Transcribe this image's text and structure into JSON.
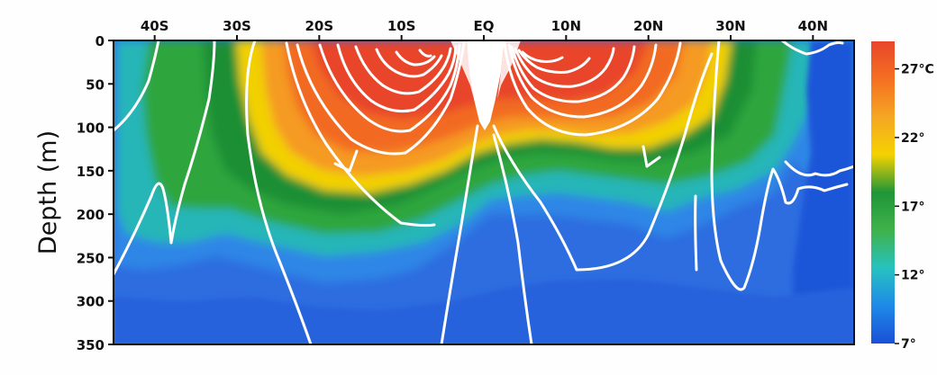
{
  "chart_data": {
    "type": "heatmap",
    "title": "",
    "xlabel": "",
    "ylabel": "Depth (m)",
    "x_ticks": [
      "40S",
      "30S",
      "20S",
      "10S",
      "EQ",
      "10N",
      "20N",
      "30N",
      "40N"
    ],
    "x_tick_values": [
      -40,
      -30,
      -20,
      -10,
      0,
      10,
      20,
      30,
      40
    ],
    "xlim": [
      -45,
      45
    ],
    "y_ticks": [
      "0",
      "50",
      "100",
      "150",
      "200",
      "250",
      "300",
      "350"
    ],
    "y_tick_values": [
      0,
      50,
      100,
      150,
      200,
      250,
      300,
      350
    ],
    "ylim": [
      0,
      350
    ],
    "y_inverted": true,
    "variable": "temperature",
    "colorbar": {
      "ticks": [
        "27°C",
        "22°",
        "17°",
        "12°",
        "7°"
      ],
      "tick_values": [
        27,
        22,
        17,
        12,
        7
      ],
      "range": [
        7,
        29
      ],
      "colors": [
        "#1a4fd6",
        "#1e8ae8",
        "#27c2c0",
        "#3fb24a",
        "#1f9638",
        "#f5d200",
        "#f5a623",
        "#f56f22",
        "#e8452a"
      ]
    },
    "isotherm_depth_m": [
      [
        -45,
        185
      ],
      [
        -40,
        225
      ],
      [
        -35,
        242
      ],
      [
        -30,
        236
      ],
      [
        -25,
        224
      ],
      [
        -20,
        210
      ],
      [
        -15,
        192
      ],
      [
        -10,
        170
      ],
      [
        -5,
        148
      ],
      [
        0,
        140
      ],
      [
        5,
        145
      ],
      [
        10,
        160
      ],
      [
        15,
        168
      ],
      [
        20,
        166
      ],
      [
        25,
        150
      ],
      [
        30,
        130
      ],
      [
        35,
        100
      ],
      [
        40,
        40
      ],
      [
        45,
        20
      ]
    ],
    "streamline_color": "#ffffff",
    "background_color": "#2d6de0"
  }
}
